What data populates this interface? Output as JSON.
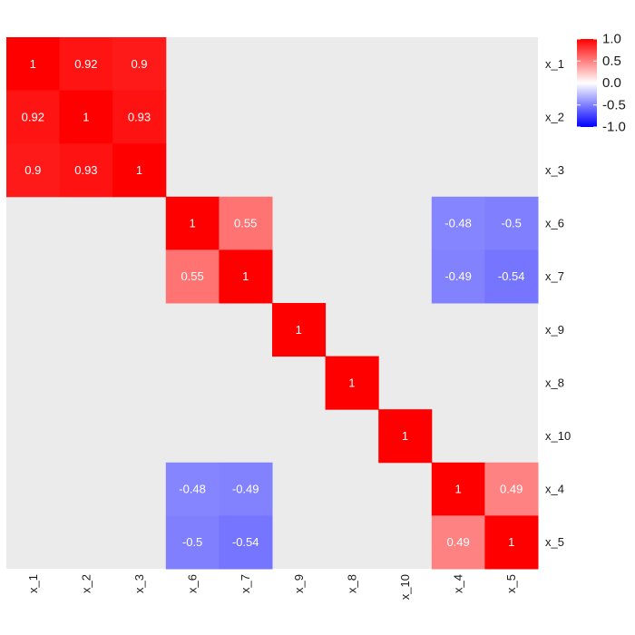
{
  "chart_data": {
    "type": "heatmap",
    "title": "",
    "xlabel": "",
    "ylabel": "",
    "variables": [
      "x_1",
      "x_2",
      "x_3",
      "x_6",
      "x_7",
      "x_9",
      "x_8",
      "x_10",
      "x_4",
      "x_5"
    ],
    "values": [
      [
        1,
        0.92,
        0.9,
        null,
        null,
        null,
        null,
        null,
        null,
        null
      ],
      [
        0.92,
        1,
        0.93,
        null,
        null,
        null,
        null,
        null,
        null,
        null
      ],
      [
        0.9,
        0.93,
        1,
        null,
        null,
        null,
        null,
        null,
        null,
        null
      ],
      [
        null,
        null,
        null,
        1,
        0.55,
        null,
        null,
        null,
        -0.48,
        -0.5
      ],
      [
        null,
        null,
        null,
        0.55,
        1,
        null,
        null,
        null,
        -0.49,
        -0.54
      ],
      [
        null,
        null,
        null,
        null,
        null,
        1,
        null,
        null,
        null,
        null
      ],
      [
        null,
        null,
        null,
        null,
        null,
        null,
        1,
        null,
        null,
        null
      ],
      [
        null,
        null,
        null,
        null,
        null,
        null,
        null,
        1,
        null,
        null
      ],
      [
        null,
        null,
        null,
        -0.48,
        -0.49,
        null,
        null,
        null,
        1,
        0.49
      ],
      [
        null,
        null,
        null,
        -0.5,
        -0.54,
        null,
        null,
        null,
        0.49,
        1
      ]
    ],
    "value_range": [
      -1,
      1
    ],
    "colors": {
      "low": "#0000ff",
      "mid": "#ffffff",
      "high": "#ff0000",
      "missing": "#ebebeb"
    },
    "legend": {
      "position": "top-right",
      "ticks": [
        "1.0",
        "0.5",
        "0.0",
        "-0.5",
        "-1.0"
      ],
      "tick_values": [
        1,
        0.5,
        0,
        -0.5,
        -1
      ]
    },
    "grid": false
  }
}
